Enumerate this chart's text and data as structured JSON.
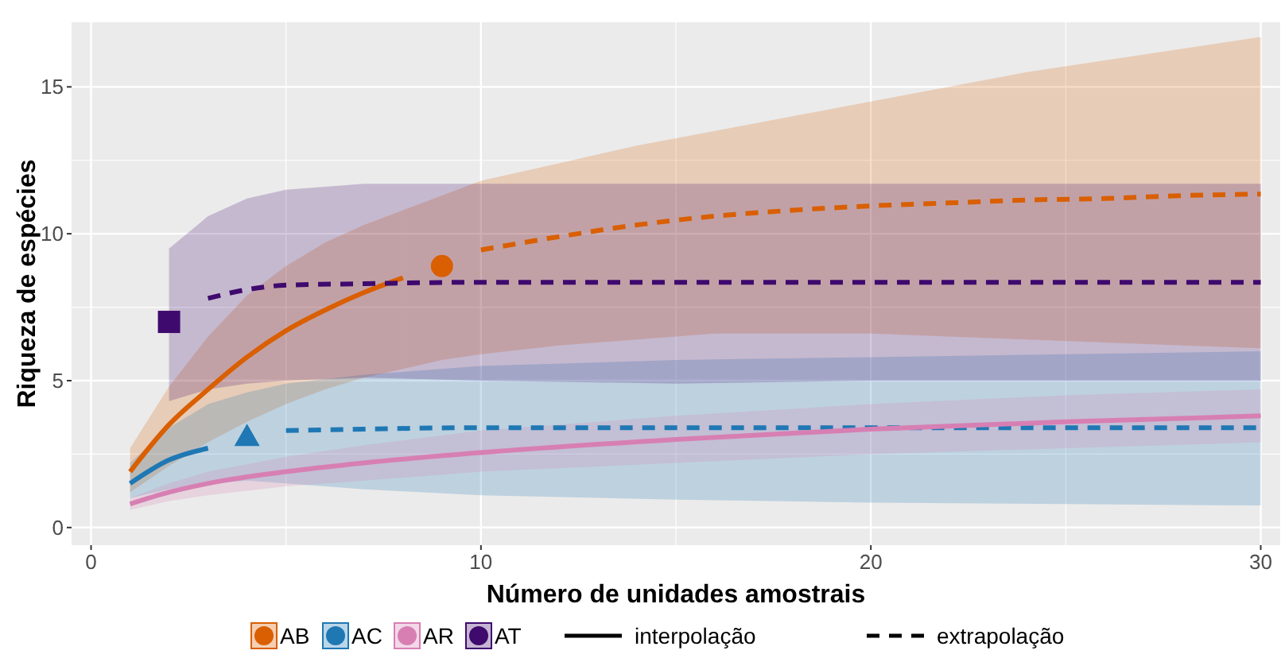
{
  "chart_data": {
    "type": "line",
    "xlabel": "Número de unidades amostrais",
    "ylabel": "Riqueza de espécies",
    "xlim": [
      -0.5,
      30.5
    ],
    "xticks": [
      0,
      10,
      20,
      30
    ],
    "ylim": [
      -0.6,
      17.2
    ],
    "yticks": [
      0,
      5,
      10,
      15
    ],
    "grid": true,
    "legend": "bottom",
    "annotations": [
      "interpolação",
      "extrapolação"
    ],
    "series": [
      {
        "name": "AB",
        "color": "#d95f02",
        "line_style": "solid",
        "x": [
          1,
          2,
          3,
          4,
          5,
          6,
          7,
          8
        ],
        "values": [
          1.9,
          3.5,
          4.7,
          5.8,
          6.7,
          7.4,
          8.0,
          8.5
        ],
        "lower": [
          1.2,
          2.1,
          2.9,
          3.6,
          4.2,
          4.7,
          5.1,
          5.4
        ],
        "upper": [
          2.7,
          4.8,
          6.5,
          7.9,
          8.9,
          9.7,
          10.3,
          10.8
        ]
      },
      {
        "color": "#d95f02",
        "line_style": "dashed",
        "x": [
          8,
          9,
          10,
          12,
          14,
          16,
          18,
          20,
          22,
          24,
          26,
          28,
          30
        ],
        "values": [
          null,
          null,
          9.45,
          9.9,
          10.3,
          10.6,
          10.8,
          10.95,
          11.05,
          11.15,
          11.2,
          11.3,
          11.35
        ],
        "lower": [
          5.4,
          5.7,
          5.9,
          6.2,
          6.4,
          6.6,
          6.6,
          6.6,
          6.5,
          6.4,
          6.3,
          6.2,
          6.1
        ],
        "upper": [
          10.8,
          11.3,
          11.8,
          12.4,
          13.0,
          13.5,
          14.0,
          14.5,
          15.0,
          15.5,
          15.9,
          16.3,
          16.7
        ]
      },
      {
        "type": "scatter",
        "color": "#d95f02",
        "marker": "circle",
        "x": [
          9
        ],
        "values": [
          8.9
        ]
      },
      {
        "name": "AC",
        "color": "#1f78b4",
        "line_style": "solid",
        "x": [
          1,
          2,
          3
        ],
        "values": [
          1.5,
          2.3,
          2.7
        ],
        "lower": [
          1.0,
          1.3,
          1.5
        ],
        "upper": [
          2.2,
          3.4,
          4.2
        ]
      },
      {
        "color": "#1f78b4",
        "line_style": "dashed",
        "x": [
          3,
          4,
          5,
          7,
          10,
          15,
          20,
          25,
          30
        ],
        "values": [
          null,
          null,
          3.3,
          3.35,
          3.4,
          3.4,
          3.4,
          3.4,
          3.4
        ],
        "lower": [
          1.5,
          1.6,
          1.5,
          1.3,
          1.1,
          0.95,
          0.85,
          0.8,
          0.75
        ],
        "upper": [
          4.2,
          4.6,
          4.9,
          5.2,
          5.5,
          5.7,
          5.8,
          5.9,
          6.0
        ]
      },
      {
        "type": "scatter",
        "color": "#1f78b4",
        "marker": "triangle",
        "x": [
          4
        ],
        "values": [
          3.1
        ]
      },
      {
        "name": "AR",
        "color": "#d77fb3",
        "line_style": "solid",
        "x": [
          1,
          2,
          3,
          5,
          7,
          10,
          15,
          20,
          25,
          30
        ],
        "values": [
          0.8,
          1.2,
          1.5,
          1.9,
          2.2,
          2.55,
          3.0,
          3.35,
          3.6,
          3.8
        ],
        "lower": [
          0.6,
          0.9,
          1.1,
          1.4,
          1.6,
          1.9,
          2.2,
          2.5,
          2.7,
          2.9
        ],
        "upper": [
          1.0,
          1.5,
          1.9,
          2.4,
          2.8,
          3.3,
          3.8,
          4.2,
          4.5,
          4.7
        ]
      },
      {
        "name": "AT",
        "color": "#3f0a6e",
        "line_style": "dashed",
        "x": [
          2,
          3,
          4,
          5,
          7,
          10,
          15,
          20,
          25,
          30
        ],
        "values": [
          null,
          7.8,
          8.1,
          8.25,
          8.3,
          8.35,
          8.35,
          8.35,
          8.35,
          8.35
        ],
        "lower": [
          4.3,
          4.7,
          4.9,
          5.0,
          5.1,
          5.0,
          4.9,
          5.0,
          5.0,
          5.0
        ],
        "upper": [
          9.5,
          10.6,
          11.2,
          11.5,
          11.7,
          11.7,
          11.7,
          11.7,
          11.7,
          11.7
        ]
      },
      {
        "type": "scatter",
        "color": "#3f0a6e",
        "marker": "square",
        "x": [
          2
        ],
        "values": [
          7.0
        ]
      }
    ]
  }
}
